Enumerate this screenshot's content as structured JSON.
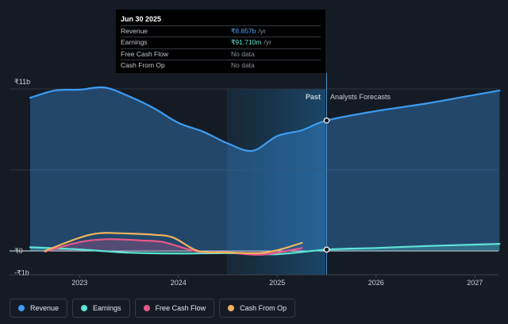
{
  "tooltip": {
    "date": "Jun 30 2025",
    "rows": [
      {
        "label": "Revenue",
        "value": "₹8.857b",
        "unit": "/yr"
      },
      {
        "label": "Earnings",
        "value": "₹91.710m",
        "unit": "/yr"
      },
      {
        "label": "Free Cash Flow",
        "value": "No data",
        "unit": ""
      },
      {
        "label": "Cash From Op",
        "value": "No data",
        "unit": ""
      }
    ]
  },
  "labels": {
    "past": "Past",
    "forecast": "Analysts Forecasts"
  },
  "legend": [
    {
      "label": "Revenue",
      "color": "#3d9bf0"
    },
    {
      "label": "Earnings",
      "color": "#5ee3d6"
    },
    {
      "label": "Free Cash Flow",
      "color": "#e8588a"
    },
    {
      "label": "Cash From Op",
      "color": "#f0b35c"
    }
  ],
  "chart_data": {
    "type": "area",
    "title": "",
    "xlabel": "",
    "ylabel": "",
    "y_tick_labels": [
      "₹11b",
      "₹0",
      "-₹1b"
    ],
    "y_ticks": [
      11,
      0,
      -1
    ],
    "x_tick_labels": [
      "2023",
      "2024",
      "2025",
      "2026",
      "2027"
    ],
    "x_ticks": [
      2023,
      2024,
      2025,
      2026,
      2027
    ],
    "ylim": [
      -1.1,
      12.2
    ],
    "xlim": [
      2022.5,
      2027.25
    ],
    "past_end": 2025.5,
    "series": [
      {
        "name": "Revenue",
        "color": "#3d9bf0",
        "fill": true,
        "x": [
          2022.5,
          2022.75,
          2023.0,
          2023.25,
          2023.5,
          2023.75,
          2024.0,
          2024.25,
          2024.5,
          2024.75,
          2025.0,
          2025.25,
          2025.5,
          2026.0,
          2026.5,
          2027.0,
          2027.25
        ],
        "y": [
          10.4,
          10.9,
          10.95,
          11.1,
          10.5,
          9.7,
          8.7,
          8.1,
          7.3,
          6.8,
          7.8,
          8.2,
          8.857,
          9.5,
          10.0,
          10.6,
          10.9
        ]
      },
      {
        "name": "Earnings",
        "color": "#5ee3d6",
        "fill": true,
        "x": [
          2022.5,
          2023.0,
          2023.5,
          2024.0,
          2024.5,
          2025.0,
          2025.5,
          2026.0,
          2026.5,
          2027.0,
          2027.25
        ],
        "y": [
          0.25,
          0.1,
          -0.12,
          -0.18,
          -0.15,
          -0.22,
          0.09,
          0.2,
          0.33,
          0.43,
          0.48
        ]
      },
      {
        "name": "Free Cash Flow",
        "color": "#e8588a",
        "fill": true,
        "x": [
          2022.65,
          2023.0,
          2023.3,
          2023.65,
          2023.85,
          2024.2,
          2024.5,
          2024.85,
          2025.25
        ],
        "y": [
          -0.05,
          0.6,
          0.8,
          0.7,
          0.6,
          -0.05,
          -0.1,
          -0.25,
          0.2
        ]
      },
      {
        "name": "Cash From Op",
        "color": "#f0b35c",
        "fill": false,
        "x": [
          2022.65,
          2023.0,
          2023.2,
          2023.4,
          2023.75,
          2023.95,
          2024.2,
          2024.5,
          2024.8,
          2025.0,
          2025.25
        ],
        "y": [
          0.0,
          0.9,
          1.2,
          1.2,
          1.1,
          0.9,
          0.0,
          -0.1,
          -0.15,
          0.05,
          0.55
        ]
      }
    ]
  }
}
